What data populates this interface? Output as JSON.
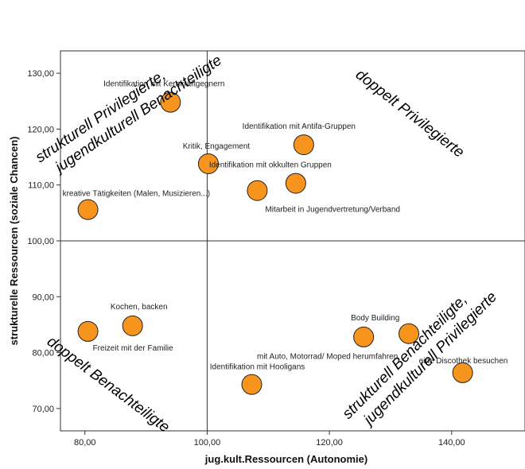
{
  "chart_data": {
    "type": "scatter",
    "xlabel": "jug.kult.Ressourcen (Autonomie)",
    "ylabel": "strukturelle Ressourcen (soziale Chancen)",
    "xlim": [
      76,
      152
    ],
    "ylim": [
      66,
      134
    ],
    "xticks": [
      "80,00",
      "100,00",
      "120,00",
      "140,00"
    ],
    "xtick_values": [
      80,
      100,
      120,
      140
    ],
    "yticks": [
      "70,00",
      "80,00",
      "90,00",
      "100,00",
      "110,00",
      "120,00",
      "130,00"
    ],
    "ytick_values": [
      70,
      80,
      90,
      100,
      110,
      120,
      130
    ],
    "reference_lines": {
      "x": 100,
      "y": 100
    },
    "grid": false,
    "marker_color": "#f7941d",
    "marker_edge_color": "#222222",
    "points": [
      {
        "label": "Identifikation mit Kernkraftgegnern",
        "x": 94.0,
        "y": 124.8
      },
      {
        "label": "Identifikation mit Antifa-Gruppen",
        "x": 115.8,
        "y": 117.2
      },
      {
        "label": "Kritik, Engagement",
        "x": 100.2,
        "y": 113.8
      },
      {
        "label": "Identifikation mit okkulten Gruppen",
        "x": 114.5,
        "y": 110.3
      },
      {
        "label": "Mitarbeit in Jugendvertretung/Verband",
        "x": 108.2,
        "y": 109.0
      },
      {
        "label": "kreative Tätigkeiten (Malen, Musizieren...)",
        "x": 80.5,
        "y": 105.6
      },
      {
        "label": "Kochen, backen",
        "x": 87.8,
        "y": 84.8
      },
      {
        "label": "Freizeit mit der Familie",
        "x": 80.5,
        "y": 83.8
      },
      {
        "label": "Body Building",
        "x": 125.6,
        "y": 82.8
      },
      {
        "label": "mit Auto, Motorrad/ Moped herumfahren",
        "x": 133.0,
        "y": 83.4
      },
      {
        "label": "Identifikation mit Hooligans",
        "x": 107.3,
        "y": 74.3
      },
      {
        "label": "eine Discothek besuchen",
        "x": 141.8,
        "y": 76.4
      }
    ],
    "quadrant_labels": {
      "top_left": [
        "strukturell Privilegierte,",
        "jugendkulturell Benachteiligte"
      ],
      "top_right": [
        "doppelt Privilegierte"
      ],
      "bottom_left": [
        "doppelt Benachteiligte"
      ],
      "bottom_right": [
        "strukturell Benachteiligte,",
        "jugendkulturell Privilegierte"
      ]
    }
  }
}
